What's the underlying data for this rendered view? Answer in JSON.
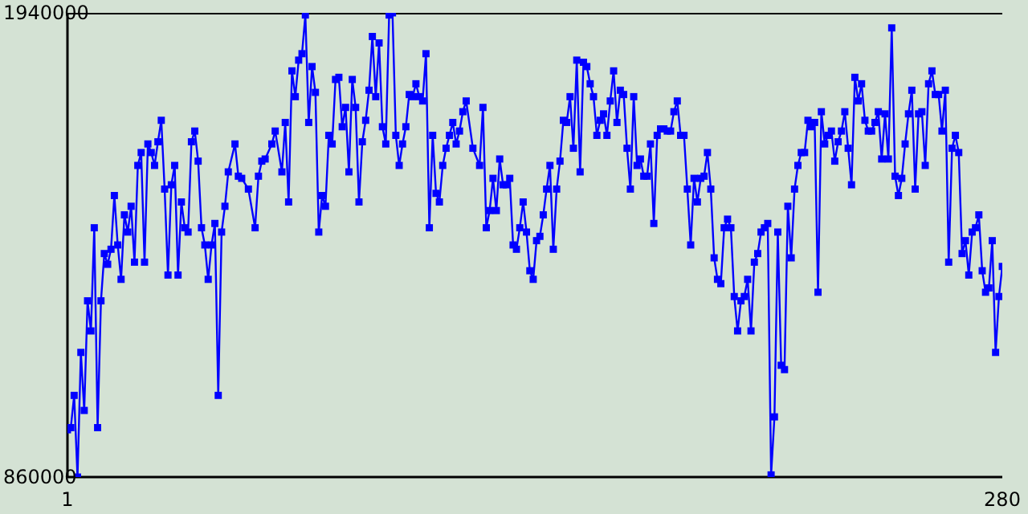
{
  "chart_data": {
    "type": "line",
    "x": [
      1,
      2,
      3,
      4,
      5,
      6,
      7,
      8,
      9,
      10,
      11,
      12,
      13,
      14,
      15,
      16,
      17,
      18,
      19,
      20,
      21,
      22,
      23,
      24,
      25,
      26,
      27,
      28,
      29,
      30,
      31,
      32,
      33,
      34,
      35,
      36,
      37,
      38,
      39,
      40,
      41,
      42,
      43,
      44,
      45,
      46,
      47,
      48,
      49,
      51,
      52,
      53,
      55,
      57,
      58,
      59,
      60,
      62,
      63,
      65,
      66,
      67,
      68,
      69,
      70,
      71,
      72,
      73,
      74,
      75,
      76,
      77,
      78,
      79,
      80,
      81,
      82,
      83,
      84,
      85,
      86,
      87,
      88,
      89,
      90,
      91,
      92,
      93,
      94,
      95,
      96,
      97,
      98,
      99,
      100,
      101,
      102,
      103,
      104,
      105,
      106,
      107,
      108,
      109,
      110,
      111,
      112,
      113,
      114,
      115,
      116,
      117,
      118,
      119,
      120,
      122,
      124,
      125,
      126,
      127,
      128,
      129,
      130,
      131,
      132,
      133,
      134,
      135,
      136,
      137,
      138,
      139,
      140,
      141,
      142,
      143,
      144,
      145,
      146,
      147,
      148,
      149,
      150,
      151,
      152,
      153,
      154,
      155,
      156,
      157,
      158,
      159,
      160,
      161,
      162,
      163,
      164,
      165,
      166,
      167,
      168,
      169,
      170,
      171,
      172,
      173,
      174,
      175,
      176,
      177,
      178,
      179,
      180,
      181,
      182,
      183,
      184,
      185,
      186,
      187,
      188,
      189,
      190,
      191,
      192,
      193,
      194,
      195,
      196,
      197,
      198,
      199,
      200,
      201,
      202,
      203,
      204,
      205,
      206,
      207,
      208,
      209,
      210,
      211,
      212,
      213,
      214,
      215,
      216,
      217,
      218,
      219,
      220,
      221,
      222,
      223,
      224,
      225,
      226,
      227,
      228,
      229,
      230,
      231,
      232,
      233,
      234,
      235,
      236,
      237,
      238,
      239,
      240,
      241,
      242,
      243,
      244,
      245,
      246,
      247,
      248,
      249,
      250,
      251,
      252,
      253,
      254,
      255,
      256,
      257,
      258,
      259,
      260,
      261,
      262,
      263,
      264,
      265,
      266,
      267,
      268,
      269,
      270,
      271,
      272,
      273,
      274,
      275,
      276,
      277,
      278,
      279,
      280
    ],
    "series": [
      {
        "color": "#0000ff",
        "values": [
          970000,
          975000,
          1050000,
          860000,
          1150000,
          1015000,
          1270000,
          1200000,
          1440000,
          975000,
          1270000,
          1380000,
          1355000,
          1390000,
          1515000,
          1400000,
          1320000,
          1470000,
          1430000,
          1490000,
          1360000,
          1585000,
          1615000,
          1360000,
          1635000,
          1615000,
          1585000,
          1640000,
          1690000,
          1530000,
          1330000,
          1540000,
          1585000,
          1330000,
          1500000,
          1440000,
          1430000,
          1640000,
          1665000,
          1595000,
          1440000,
          1400000,
          1320000,
          1400000,
          1450000,
          1050000,
          1430000,
          1490000,
          1570000,
          1635000,
          1560000,
          1555000,
          1530000,
          1440000,
          1560000,
          1595000,
          1600000,
          1635000,
          1665000,
          1570000,
          1685000,
          1500000,
          1805000,
          1745000,
          1830000,
          1845000,
          1935000,
          1685000,
          1815000,
          1755000,
          1430000,
          1515000,
          1490000,
          1655000,
          1635000,
          1785000,
          1790000,
          1675000,
          1720000,
          1570000,
          1785000,
          1720000,
          1500000,
          1640000,
          1690000,
          1760000,
          1885000,
          1745000,
          1870000,
          1675000,
          1635000,
          1935000,
          1940000,
          1655000,
          1585000,
          1635000,
          1675000,
          1750000,
          1745000,
          1775000,
          1745000,
          1735000,
          1845000,
          1440000,
          1655000,
          1520000,
          1500000,
          1585000,
          1625000,
          1655000,
          1685000,
          1635000,
          1665000,
          1710000,
          1735000,
          1625000,
          1585000,
          1720000,
          1440000,
          1480000,
          1555000,
          1480000,
          1600000,
          1540000,
          1540000,
          1555000,
          1400000,
          1390000,
          1440000,
          1500000,
          1430000,
          1340000,
          1320000,
          1410000,
          1420000,
          1470000,
          1530000,
          1585000,
          1390000,
          1530000,
          1595000,
          1690000,
          1685000,
          1745000,
          1625000,
          1830000,
          1570000,
          1825000,
          1815000,
          1775000,
          1745000,
          1655000,
          1690000,
          1705000,
          1655000,
          1735000,
          1805000,
          1685000,
          1760000,
          1750000,
          1625000,
          1530000,
          1745000,
          1585000,
          1600000,
          1560000,
          1560000,
          1635000,
          1450000,
          1655000,
          1670000,
          1670000,
          1665000,
          1665000,
          1710000,
          1735000,
          1655000,
          1655000,
          1530000,
          1400000,
          1555000,
          1500000,
          1555000,
          1560000,
          1615000,
          1530000,
          1370000,
          1320000,
          1310000,
          1440000,
          1460000,
          1440000,
          1280000,
          1200000,
          1270000,
          1280000,
          1320000,
          1200000,
          1360000,
          1380000,
          1430000,
          1440000,
          1450000,
          865000,
          1000000,
          1430000,
          1120000,
          1110000,
          1490000,
          1370000,
          1530000,
          1585000,
          1615000,
          1615000,
          1690000,
          1675000,
          1685000,
          1290000,
          1710000,
          1635000,
          1655000,
          1665000,
          1595000,
          1640000,
          1665000,
          1710000,
          1625000,
          1540000,
          1790000,
          1735000,
          1775000,
          1690000,
          1665000,
          1665000,
          1685000,
          1710000,
          1600000,
          1705000,
          1600000,
          1905000,
          1560000,
          1515000,
          1555000,
          1635000,
          1705000,
          1760000,
          1530000,
          1705000,
          1710000,
          1585000,
          1775000,
          1805000,
          1750000,
          1750000,
          1665000,
          1760000,
          1360000,
          1625000,
          1655000,
          1615000,
          1380000,
          1410000,
          1330000,
          1430000,
          1440000,
          1470000,
          1340000,
          1290000,
          1300000,
          1410000,
          1150000,
          1280000,
          1350000
        ]
      }
    ],
    "xlim": [
      1,
      280
    ],
    "xticks": [
      1,
      280
    ],
    "ylim": [
      860000,
      1940000
    ],
    "yticks": [
      860000,
      1940000
    ],
    "marker": "square",
    "line_style": "solid"
  }
}
